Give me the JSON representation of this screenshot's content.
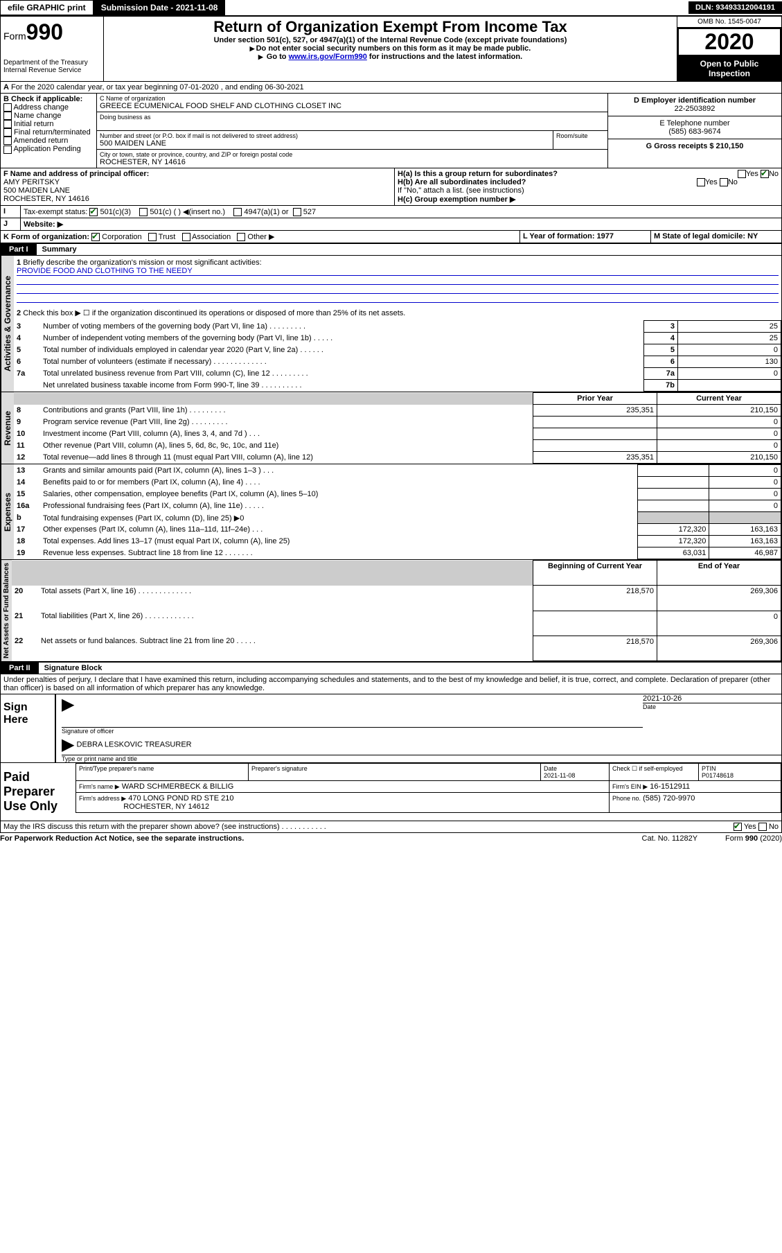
{
  "topbar": {
    "efile": "efile GRAPHIC print",
    "submission_label": "Submission Date - 2021-11-08",
    "dln": "DLN: 93493312004191"
  },
  "header": {
    "form_prefix": "Form",
    "form_number": "990",
    "dept": "Department of the Treasury\nInternal Revenue Service",
    "title": "Return of Organization Exempt From Income Tax",
    "sub1": "Under section 501(c), 527, or 4947(a)(1) of the Internal Revenue Code (except private foundations)",
    "sub2": "Do not enter social security numbers on this form as it may be made public.",
    "sub3_pre": "Go to ",
    "sub3_link": "www.irs.gov/Form990",
    "sub3_post": " for instructions and the latest information.",
    "omb": "OMB No. 1545-0047",
    "year": "2020",
    "inspect": "Open to Public Inspection"
  },
  "period": {
    "text": "For the 2020 calendar year, or tax year beginning 07-01-2020   , and ending 06-30-2021"
  },
  "boxB": {
    "label": "B Check if applicable:",
    "items": [
      "Address change",
      "Name change",
      "Initial return",
      "Final return/terminated",
      "Amended return",
      "Application Pending"
    ]
  },
  "boxC": {
    "name_label": "C Name of organization",
    "name": "GREECE ECUMENICAL FOOD SHELF AND CLOTHING CLOSET INC",
    "dba_label": "Doing business as",
    "addr_label": "Number and street (or P.O. box if mail is not delivered to street address)",
    "room_label": "Room/suite",
    "addr": "500 MAIDEN LANE",
    "city_label": "City or town, state or province, country, and ZIP or foreign postal code",
    "city": "ROCHESTER, NY  14616"
  },
  "boxD": {
    "label": "D Employer identification number",
    "value": "22-2503892"
  },
  "boxE": {
    "label": "E Telephone number",
    "value": "(585) 683-9674"
  },
  "boxG": {
    "label": "G Gross receipts $ 210,150"
  },
  "boxF": {
    "label": "F  Name and address of principal officer:",
    "name": "AMY PERITSKY",
    "addr1": "500 MAIDEN LANE",
    "addr2": "ROCHESTER, NY  14616"
  },
  "boxH": {
    "a": "H(a)  Is this a group return for subordinates?",
    "b": "H(b)  Are all subordinates included?",
    "note": "If \"No,\" attach a list. (see instructions)",
    "c": "H(c)  Group exemption number ▶",
    "yes": "Yes",
    "no": "No"
  },
  "boxI": {
    "label": "Tax-exempt status:",
    "opt1": "501(c)(3)",
    "opt2": "501(c) (  ) ◀(insert no.)",
    "opt3": "4947(a)(1) or",
    "opt4": "527"
  },
  "boxJ": {
    "label": "Website: ▶"
  },
  "boxK": {
    "label": "K Form of organization:",
    "opts": [
      "Corporation",
      "Trust",
      "Association",
      "Other ▶"
    ]
  },
  "boxL": {
    "label": "L Year of formation: 1977"
  },
  "boxM": {
    "label": "M State of legal domicile: NY"
  },
  "part1": {
    "label": "Part I",
    "title": "Summary",
    "side_ag": "Activities & Governance",
    "side_rev": "Revenue",
    "side_exp": "Expenses",
    "side_na": "Net Assets or Fund Balances",
    "q1": "Briefly describe the organization's mission or most significant activities:",
    "q1_ans": "PROVIDE FOOD AND CLOTHING TO THE NEEDY",
    "q2": "Check this box ▶ ☐  if the organization discontinued its operations or disposed of more than 25% of its net assets.",
    "rows_ag": [
      {
        "n": "3",
        "t": "Number of voting members of the governing body (Part VI, line 1a)  .    .    .    .    .    .    .    .    .",
        "box": "3",
        "v": "25"
      },
      {
        "n": "4",
        "t": "Number of independent voting members of the governing body (Part VI, line 1b)  .    .    .    .    .",
        "box": "4",
        "v": "25"
      },
      {
        "n": "5",
        "t": "Total number of individuals employed in calendar year 2020 (Part V, line 2a)  .    .    .    .    .    .",
        "box": "5",
        "v": "0"
      },
      {
        "n": "6",
        "t": "Total number of volunteers (estimate if necessary)  .    .    .    .    .    .    .    .    .    .    .    .    .",
        "box": "6",
        "v": "130"
      },
      {
        "n": "7a",
        "t": "Total unrelated business revenue from Part VIII, column (C), line 12  .    .    .    .    .    .    .    .    .",
        "box": "7a",
        "v": "0"
      },
      {
        "n": "",
        "t": "Net unrelated business taxable income from Form 990-T, line 39  .    .    .    .    .    .    .    .    .    .",
        "box": "7b",
        "v": ""
      }
    ],
    "col_prior": "Prior Year",
    "col_current": "Current Year",
    "rows_rev": [
      {
        "n": "8",
        "t": "Contributions and grants (Part VIII, line 1h)  .    .    .    .    .    .    .    .    .",
        "p": "235,351",
        "c": "210,150"
      },
      {
        "n": "9",
        "t": "Program service revenue (Part VIII, line 2g)  .    .    .    .    .    .    .    .    .",
        "p": "",
        "c": "0"
      },
      {
        "n": "10",
        "t": "Investment income (Part VIII, column (A), lines 3, 4, and 7d )  .    .    .",
        "p": "",
        "c": "0"
      },
      {
        "n": "11",
        "t": "Other revenue (Part VIII, column (A), lines 5, 6d, 8c, 9c, 10c, and 11e)",
        "p": "",
        "c": "0"
      },
      {
        "n": "12",
        "t": "Total revenue—add lines 8 through 11 (must equal Part VIII, column (A), line 12)",
        "p": "235,351",
        "c": "210,150"
      }
    ],
    "rows_exp": [
      {
        "n": "13",
        "t": "Grants and similar amounts paid (Part IX, column (A), lines 1–3 )  .    .    .",
        "p": "",
        "c": "0"
      },
      {
        "n": "14",
        "t": "Benefits paid to or for members (Part IX, column (A), line 4)  .    .    .    .",
        "p": "",
        "c": "0"
      },
      {
        "n": "15",
        "t": "Salaries, other compensation, employee benefits (Part IX, column (A), lines 5–10)",
        "p": "",
        "c": "0"
      },
      {
        "n": "16a",
        "t": "Professional fundraising fees (Part IX, column (A), line 11e)  .    .    .    .    .",
        "p": "",
        "c": "0"
      },
      {
        "n": "b",
        "t": "Total fundraising expenses (Part IX, column (D), line 25) ▶0",
        "p": "GREY",
        "c": "GREY"
      },
      {
        "n": "17",
        "t": "Other expenses (Part IX, column (A), lines 11a–11d, 11f–24e)  .    .    .",
        "p": "172,320",
        "c": "163,163"
      },
      {
        "n": "18",
        "t": "Total expenses. Add lines 13–17 (must equal Part IX, column (A), line 25)",
        "p": "172,320",
        "c": "163,163"
      },
      {
        "n": "19",
        "t": "Revenue less expenses. Subtract line 18 from line 12  .    .    .    .    .    .    .",
        "p": "63,031",
        "c": "46,987"
      }
    ],
    "col_begin": "Beginning of Current Year",
    "col_end": "End of Year",
    "rows_na": [
      {
        "n": "20",
        "t": "Total assets (Part X, line 16)  .    .    .    .    .    .    .    .    .    .    .    .    .",
        "p": "218,570",
        "c": "269,306"
      },
      {
        "n": "21",
        "t": "Total liabilities (Part X, line 26)  .    .    .    .    .    .    .    .    .    .    .    .",
        "p": "",
        "c": "0"
      },
      {
        "n": "22",
        "t": "Net assets or fund balances. Subtract line 21 from line 20  .    .    .    .    .",
        "p": "218,570",
        "c": "269,306"
      }
    ]
  },
  "part2": {
    "label": "Part II",
    "title": "Signature Block",
    "perjury": "Under penalties of perjury, I declare that I have examined this return, including accompanying schedules and statements, and to the best of my knowledge and belief, it is true, correct, and complete. Declaration of preparer (other than officer) is based on all information of which preparer has any knowledge.",
    "sign_here": "Sign Here",
    "sig_officer": "Signature of officer",
    "date_label": "Date",
    "sig_date": "2021-10-26",
    "name_title": "DEBRA LESKOVIC  TREASURER",
    "type_label": "Type or print name and title",
    "paid": "Paid Preparer Use Only",
    "prep_name_label": "Print/Type preparer's name",
    "prep_sig_label": "Preparer's signature",
    "prep_date_label": "Date",
    "prep_date": "2021-11-08",
    "check_self": "Check ☐  if self-employed",
    "ptin_label": "PTIN",
    "ptin": "P01748618",
    "firm_name_label": "Firm's name    ▶",
    "firm_name": "WARD SCHMERBECK & BILLIG",
    "firm_ein_label": "Firm's EIN ▶",
    "firm_ein": "16-1512911",
    "firm_addr_label": "Firm's address ▶",
    "firm_addr1": "470 LONG POND RD STE 210",
    "firm_addr2": "ROCHESTER, NY  14612",
    "phone_label": "Phone no.",
    "phone": "(585) 720-9970",
    "discuss": "May the IRS discuss this return with the preparer shown above? (see instructions)  .    .    .    .    .    .    .    .    .    .    .",
    "yes": "Yes",
    "no": "No"
  },
  "footer": {
    "pra": "For Paperwork Reduction Act Notice, see the separate instructions.",
    "cat": "Cat. No. 11282Y",
    "form": "Form 990 (2020)"
  }
}
